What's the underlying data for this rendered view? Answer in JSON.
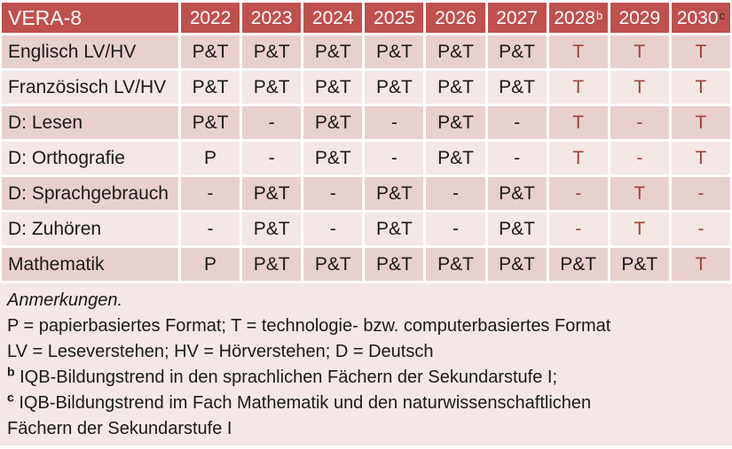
{
  "colors": {
    "header_bg": "#C0504D",
    "header_text": "#FFFFFF",
    "band_dark": "#E8D0CE",
    "band_light": "#F3E8E5",
    "notes_bg": "#F3E8E5",
    "accent_text": "#A2433C",
    "body_text": "#1A1A1A"
  },
  "table": {
    "title": "VERA-8",
    "columns": [
      {
        "label": "2022",
        "sup": ""
      },
      {
        "label": "2023",
        "sup": ""
      },
      {
        "label": "2024",
        "sup": ""
      },
      {
        "label": "2025",
        "sup": ""
      },
      {
        "label": "2026",
        "sup": ""
      },
      {
        "label": "2027",
        "sup": ""
      },
      {
        "label": "2028",
        "sup": "b",
        "sup_color": "#FFFFFF"
      },
      {
        "label": "2029",
        "sup": ""
      },
      {
        "label": "2030",
        "sup": "c",
        "sup_color": "#262626"
      }
    ],
    "rows": [
      {
        "label": "Englisch LV/HV",
        "band": "dark",
        "cells": [
          {
            "text": "P&T",
            "red": false
          },
          {
            "text": "P&T",
            "red": false
          },
          {
            "text": "P&T",
            "red": false
          },
          {
            "text": "P&T",
            "red": false
          },
          {
            "text": "P&T",
            "red": false
          },
          {
            "text": "P&T",
            "red": false
          },
          {
            "text": "T",
            "red": true
          },
          {
            "text": "T",
            "red": true
          },
          {
            "text": "T",
            "red": true
          }
        ]
      },
      {
        "label": "Französisch LV/HV",
        "band": "light",
        "cells": [
          {
            "text": "P&T",
            "red": false
          },
          {
            "text": "P&T",
            "red": false
          },
          {
            "text": "P&T",
            "red": false
          },
          {
            "text": "P&T",
            "red": false
          },
          {
            "text": "P&T",
            "red": false
          },
          {
            "text": "P&T",
            "red": false
          },
          {
            "text": "T",
            "red": true
          },
          {
            "text": "T",
            "red": true
          },
          {
            "text": "T",
            "red": true
          }
        ]
      },
      {
        "label": "D: Lesen",
        "band": "dark",
        "cells": [
          {
            "text": "P&T",
            "red": false
          },
          {
            "text": "-",
            "red": false
          },
          {
            "text": "P&T",
            "red": false
          },
          {
            "text": "-",
            "red": false
          },
          {
            "text": "P&T",
            "red": false
          },
          {
            "text": "-",
            "red": false
          },
          {
            "text": "T",
            "red": true
          },
          {
            "text": "-",
            "red": true
          },
          {
            "text": "T",
            "red": true
          }
        ]
      },
      {
        "label": "D: Orthografie",
        "band": "light",
        "cells": [
          {
            "text": "P",
            "red": false
          },
          {
            "text": "-",
            "red": false
          },
          {
            "text": "P&T",
            "red": false
          },
          {
            "text": "-",
            "red": false
          },
          {
            "text": "P&T",
            "red": false
          },
          {
            "text": "-",
            "red": false
          },
          {
            "text": "T",
            "red": true
          },
          {
            "text": "-",
            "red": true
          },
          {
            "text": "T",
            "red": true
          }
        ]
      },
      {
        "label": "D: Sprachgebrauch",
        "band": "dark",
        "cells": [
          {
            "text": "-",
            "red": false
          },
          {
            "text": "P&T",
            "red": false
          },
          {
            "text": "-",
            "red": false
          },
          {
            "text": "P&T",
            "red": false
          },
          {
            "text": "-",
            "red": false
          },
          {
            "text": "P&T",
            "red": false
          },
          {
            "text": "-",
            "red": true
          },
          {
            "text": "T",
            "red": true
          },
          {
            "text": "-",
            "red": true
          }
        ]
      },
      {
        "label": "D: Zuhören",
        "band": "light",
        "cells": [
          {
            "text": "-",
            "red": false
          },
          {
            "text": "P&T",
            "red": false
          },
          {
            "text": "-",
            "red": false
          },
          {
            "text": "P&T",
            "red": false
          },
          {
            "text": "-",
            "red": false
          },
          {
            "text": "P&T",
            "red": false
          },
          {
            "text": "-",
            "red": true
          },
          {
            "text": "T",
            "red": true
          },
          {
            "text": "-",
            "red": true
          }
        ]
      },
      {
        "label": "Mathematik",
        "band": "dark",
        "cells": [
          {
            "text": "P",
            "red": false
          },
          {
            "text": "P&T",
            "red": false
          },
          {
            "text": "P&T",
            "red": false
          },
          {
            "text": "P&T",
            "red": false
          },
          {
            "text": "P&T",
            "red": false
          },
          {
            "text": "P&T",
            "red": false
          },
          {
            "text": "P&T",
            "red": false
          },
          {
            "text": "P&T",
            "red": false
          },
          {
            "text": "T",
            "red": true
          }
        ]
      }
    ]
  },
  "notes": {
    "heading": "Anmerkungen.",
    "lines": [
      {
        "sup": "",
        "text": "P = papierbasiertes Format; T = technologie- bzw. computerbasiertes Format"
      },
      {
        "sup": "",
        "text": "LV = Leseverstehen; HV = Hörverstehen; D = Deutsch"
      },
      {
        "sup": "b",
        "text": "IQB-Bildungstrend in den sprachlichen Fächern der Sekundarstufe I;"
      },
      {
        "sup": "c",
        "text": "IQB-Bildungstrend im Fach Mathematik und den naturwissenschaftlichen"
      },
      {
        "sup": "",
        "text": "Fächern der Sekundarstufe I"
      }
    ]
  }
}
